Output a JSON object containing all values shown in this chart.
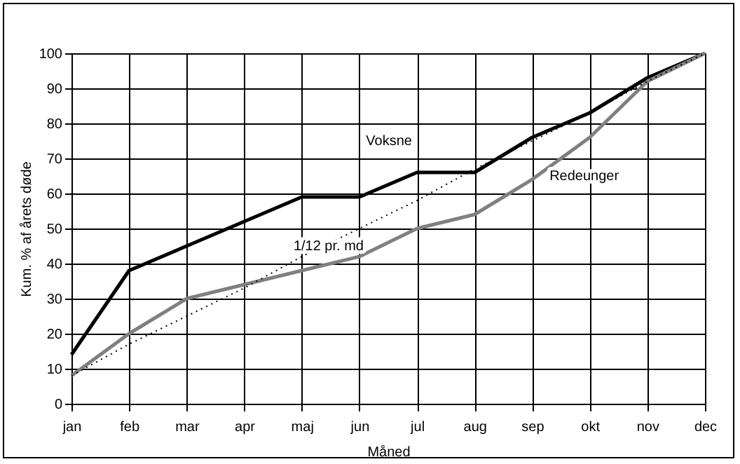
{
  "chart_data": {
    "type": "line",
    "xlabel": "Måned",
    "ylabel": "Kum. % af årets døde",
    "categories": [
      "jan",
      "feb",
      "mar",
      "apr",
      "maj",
      "jun",
      "jul",
      "aug",
      "sep",
      "okt",
      "nov",
      "dec"
    ],
    "series": [
      {
        "name": "Voksne",
        "color": "#000000",
        "line_style": "solid",
        "values": [
          14,
          38,
          45,
          52,
          59,
          59,
          66,
          66,
          76,
          83,
          93,
          100
        ]
      },
      {
        "name": "Redeunger",
        "color": "#808080",
        "line_style": "solid",
        "values": [
          8,
          20,
          30,
          34,
          38,
          42,
          50,
          54,
          64,
          76,
          92,
          100
        ]
      },
      {
        "name": "1/12 pr. md",
        "color": "#000000",
        "line_style": "dotted",
        "values": [
          8,
          17,
          25,
          33,
          42,
          50,
          58,
          67,
          75,
          83,
          92,
          100
        ]
      }
    ],
    "ylim": [
      0,
      100
    ],
    "yticks": [
      0,
      10,
      20,
      30,
      40,
      50,
      60,
      70,
      80,
      90,
      100
    ],
    "grid": true,
    "legend": false,
    "marker": "none"
  }
}
